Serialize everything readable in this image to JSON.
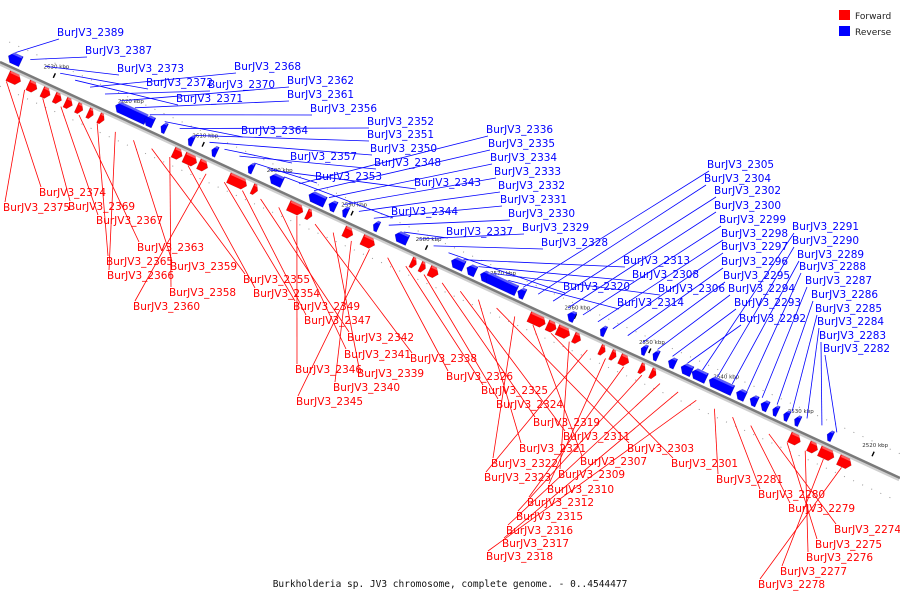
{
  "caption": "Burkholderia sp. JV3 chromosome, complete genome. - 0..4544477",
  "colors": {
    "forward": "#ff0000",
    "reverse": "#0000ff",
    "axis": "#888888"
  },
  "legend": [
    {
      "name": "Forward",
      "color": "#ff0000"
    },
    {
      "name": "Reverse",
      "color": "#0000ff"
    }
  ],
  "ticks": [
    {
      "label": "2520 kbp",
      "pos": 2520
    },
    {
      "label": "2530 kbp",
      "pos": 2530
    },
    {
      "label": "2540 kbp",
      "pos": 2540
    },
    {
      "label": "2550 kbp",
      "pos": 2550
    },
    {
      "label": "2560 kbp",
      "pos": 2560
    },
    {
      "label": "2570 kbp",
      "pos": 2570
    },
    {
      "label": "2580 kbp",
      "pos": 2580
    },
    {
      "label": "2590 kbp",
      "pos": 2590
    },
    {
      "label": "2600 kbp",
      "pos": 2600
    },
    {
      "label": "2610 kbp",
      "pos": 2610
    },
    {
      "label": "2620 kbp",
      "pos": 2620
    },
    {
      "label": "2630 kbp",
      "pos": 2630
    }
  ],
  "reverse_labels": [
    "BurJV3_2389",
    "BurJV3_2387",
    "BurJV3_2373",
    "BurJV3_2372",
    "BurJV3_2371",
    "BurJV3_2368",
    "BurJV3_2370",
    "BurJV3_2362",
    "BurJV3_2361",
    "BurJV3_2356",
    "BurJV3_2364",
    "BurJV3_2352",
    "BurJV3_2351",
    "BurJV3_2350",
    "BurJV3_2357",
    "BurJV3_2348",
    "BurJV3_2353",
    "BurJV3_2343",
    "BurJV3_2344",
    "BurJV3_2336",
    "BurJV3_2335",
    "BurJV3_2334",
    "BurJV3_2333",
    "BurJV3_2332",
    "BurJV3_2331",
    "BurJV3_2330",
    "BurJV3_2337",
    "BurJV3_2329",
    "BurJV3_2328",
    "BurJV3_2320",
    "BurJV3_2313",
    "BurJV3_2308",
    "BurJV3_2306",
    "BurJV3_2314",
    "BurJV3_2305",
    "BurJV3_2304",
    "BurJV3_2302",
    "BurJV3_2300",
    "BurJV3_2299",
    "BurJV3_2298",
    "BurJV3_2297",
    "BurJV3_2296",
    "BurJV3_2295",
    "BurJV3_2294",
    "BurJV3_2293",
    "BurJV3_2292",
    "BurJV3_2291",
    "BurJV3_2290",
    "BurJV3_2289",
    "BurJV3_2288",
    "BurJV3_2287",
    "BurJV3_2286",
    "BurJV3_2285",
    "BurJV3_2284",
    "BurJV3_2283",
    "BurJV3_2282"
  ],
  "forward_labels": [
    "BurJV3_2374",
    "BurJV3_2375",
    "BurJV3_2369",
    "BurJV3_2367",
    "BurJV3_2363",
    "BurJV3_2365",
    "BurJV3_2366",
    "BurJV3_2359",
    "BurJV3_2355",
    "BurJV3_2358",
    "BurJV3_2354",
    "BurJV3_2360",
    "BurJV3_2349",
    "BurJV3_2347",
    "BurJV3_2342",
    "BurJV3_2341",
    "BurJV3_2346",
    "BurJV3_2338",
    "BurJV3_2339",
    "BurJV3_2340",
    "BurJV3_2345",
    "BurJV3_2326",
    "BurJV3_2325",
    "BurJV3_2324",
    "BurJV3_2319",
    "BurJV3_2311",
    "BurJV3_2321",
    "BurJV3_2303",
    "BurJV3_2322",
    "BurJV3_2307",
    "BurJV3_2301",
    "BurJV3_2309",
    "BurJV3_2323",
    "BurJV3_2310",
    "BurJV3_2312",
    "BurJV3_2315",
    "BurJV3_2316",
    "BurJV3_2317",
    "BurJV3_2318",
    "BurJV3_2281",
    "BurJV3_2280",
    "BurJV3_2279",
    "BurJV3_2274",
    "BurJV3_2275",
    "BurJV3_2276",
    "BurJV3_2277",
    "BurJV3_2278"
  ]
}
